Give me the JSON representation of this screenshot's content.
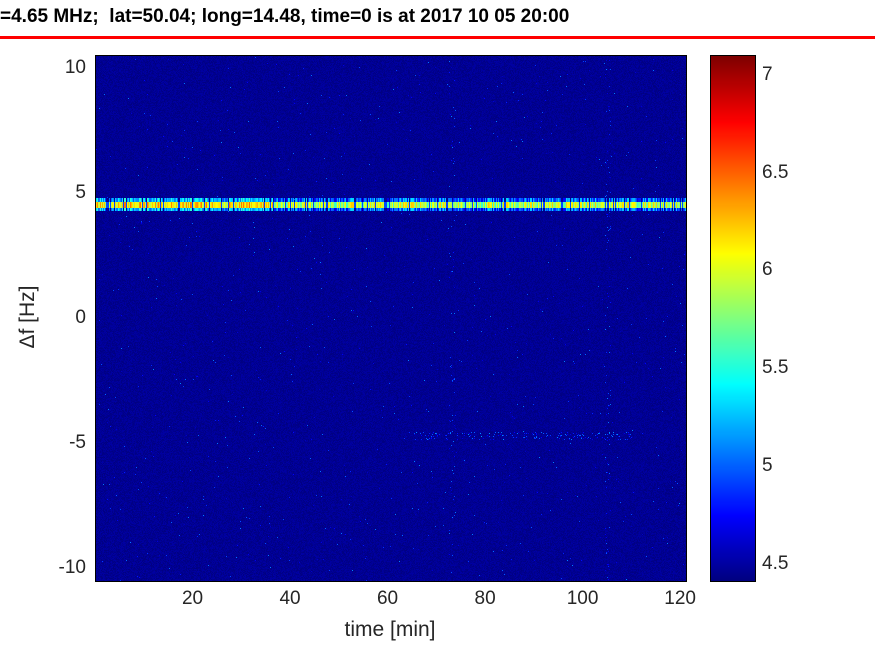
{
  "figure": {
    "background_color": "#ffffff",
    "title_underline_color": "#ff0000"
  },
  "chart_data": {
    "type": "heatmap",
    "title": "=4.65 MHz;  lat=50.04; long=14.48, time=0 is at 2017 10 05 20:00",
    "xlabel": "time [min]",
    "ylabel": "Δf [Hz]",
    "xlim": [
      0,
      121
    ],
    "ylim": [
      -10.5,
      10.5
    ],
    "x_ticks": [
      20,
      40,
      60,
      80,
      100,
      120
    ],
    "y_ticks": [
      10,
      5,
      0,
      -5,
      -10
    ],
    "grid": false,
    "legend": "none",
    "colormap": "jet",
    "color_range": [
      4.42,
      7.1
    ],
    "colorbar_ticks": [
      4.5,
      5,
      5.5,
      6,
      6.5,
      7
    ],
    "background_value": 4.47,
    "features": [
      {
        "kind": "horizontal-line",
        "delta_f_hz": 4.55,
        "time_range_min": [
          0,
          121
        ],
        "value_range": [
          5.4,
          6.4
        ],
        "description": "bright narrowband carrier line spanning full time axis, cyan-green-yellow with dashed gaps, brighter on left third"
      },
      {
        "kind": "speckle-noise",
        "value_range": [
          4.5,
          5.1
        ],
        "density": 0.0035,
        "description": "sparse faint blue speckles scattered over whole map"
      },
      {
        "kind": "vertical-striations",
        "times_min": [
          73,
          105
        ],
        "value_range": [
          4.6,
          5.1
        ],
        "description": "faint vertical noisy columns near t=73 min and t=105 min"
      },
      {
        "kind": "faint-horizontal-trace",
        "delta_f_hz": -4.7,
        "time_range_min": [
          65,
          110
        ],
        "value_range": [
          4.65,
          5.15
        ],
        "description": "very faint dotted horizontal trace in right half below center"
      }
    ]
  }
}
